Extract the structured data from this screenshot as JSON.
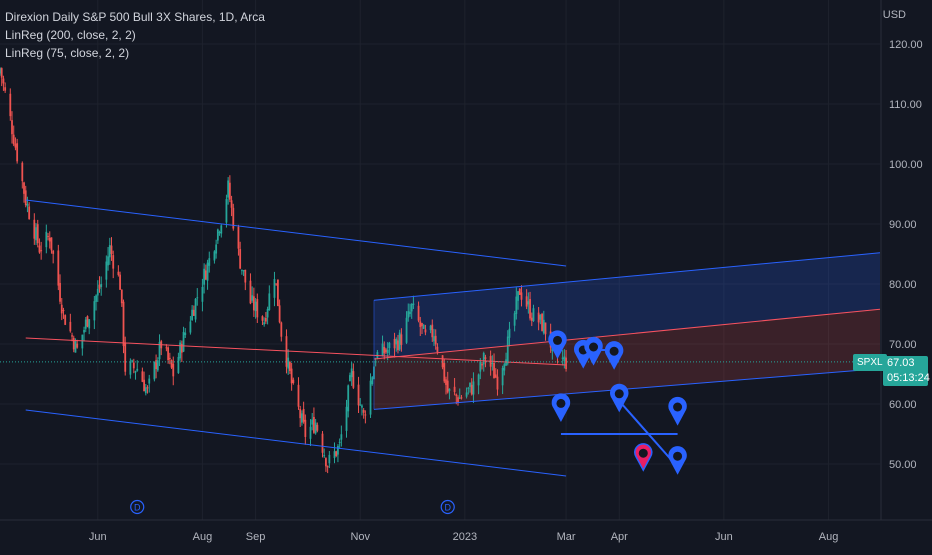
{
  "legend": {
    "title": "Direxion Daily S&P 500 Bull 3X Shares, 1D, Arca",
    "ind1": "LinReg (200, close, 2, 2)",
    "ind2": "LinReg (75, close, 2, 2)"
  },
  "currency": "USD",
  "last_price": "67.03",
  "countdown": "05:13:24",
  "ticker": "SPXL",
  "colors": {
    "background": "#131722",
    "up": "#26a69a",
    "down": "#ef5350",
    "channel_line": "#2962ff",
    "center_line": "#f7525f",
    "marker": "#2962ff",
    "marker_highlight": "#e91e63"
  },
  "dividend_icon": "D",
  "chart_data": {
    "type": "candlestick",
    "y_axis": {
      "ylim": [
        41,
        126
      ],
      "ticks": [
        50,
        60,
        70,
        80,
        90,
        100,
        110,
        120
      ],
      "tick_labels": [
        "50.00",
        "60.00",
        "70.00",
        "80.00",
        "90.00",
        "100.00",
        "110.00",
        "120.00"
      ]
    },
    "x_axis": {
      "tick_labels": [
        "Jun",
        "Aug",
        "Sep",
        "Nov",
        "2023",
        "Mar",
        "Apr",
        "Jun",
        "Aug"
      ],
      "tick_dates": [
        "2022-06-01",
        "2022-08-01",
        "2022-09-01",
        "2022-11-01",
        "2023-01-01",
        "2023-03-01",
        "2023-04-01",
        "2023-06-01",
        "2023-08-01"
      ]
    },
    "date_range": [
      "2022-04-05",
      "2023-08-31"
    ],
    "close_path": [
      [
        "2022-04-05",
        116
      ],
      [
        "2022-04-12",
        106
      ],
      [
        "2022-04-20",
        94
      ],
      [
        "2022-04-28",
        86
      ],
      [
        "2022-05-04",
        88
      ],
      [
        "2022-05-12",
        75
      ],
      [
        "2022-05-20",
        69
      ],
      [
        "2022-05-28",
        76
      ],
      [
        "2022-06-03",
        80
      ],
      [
        "2022-06-08",
        86
      ],
      [
        "2022-06-14",
        80
      ],
      [
        "2022-06-17",
        66
      ],
      [
        "2022-06-24",
        66
      ],
      [
        "2022-06-30",
        62
      ],
      [
        "2022-07-08",
        70
      ],
      [
        "2022-07-15",
        65
      ],
      [
        "2022-07-22",
        72
      ],
      [
        "2022-07-29",
        78
      ],
      [
        "2022-08-05",
        84
      ],
      [
        "2022-08-12",
        91
      ],
      [
        "2022-08-16",
        96
      ],
      [
        "2022-08-22",
        85
      ],
      [
        "2022-08-29",
        77
      ],
      [
        "2022-09-06",
        74
      ],
      [
        "2022-09-12",
        82
      ],
      [
        "2022-09-16",
        72
      ],
      [
        "2022-09-23",
        62
      ],
      [
        "2022-09-30",
        55
      ],
      [
        "2022-10-06",
        57
      ],
      [
        "2022-10-13",
        50
      ],
      [
        "2022-10-20",
        53
      ],
      [
        "2022-10-27",
        65
      ],
      [
        "2022-11-03",
        58
      ],
      [
        "2022-11-10",
        68
      ],
      [
        "2022-11-17",
        69
      ],
      [
        "2022-11-25",
        71
      ],
      [
        "2022-12-01",
        76
      ],
      [
        "2022-12-09",
        71
      ],
      [
        "2022-12-14",
        72
      ],
      [
        "2022-12-22",
        62
      ],
      [
        "2022-12-29",
        61
      ],
      [
        "2023-01-06",
        63
      ],
      [
        "2023-01-13",
        68
      ],
      [
        "2023-01-20",
        64
      ],
      [
        "2023-01-27",
        71
      ],
      [
        "2023-02-02",
        79
      ],
      [
        "2023-02-09",
        75
      ],
      [
        "2023-02-16",
        73
      ],
      [
        "2023-02-23",
        68
      ],
      [
        "2023-03-01",
        67
      ]
    ],
    "linreg_200": {
      "start": "2022-04-20",
      "end": "2023-03-01",
      "upper": [
        94,
        83
      ],
      "center": [
        71,
        66.5
      ],
      "lower": [
        59,
        48
      ]
    },
    "linreg_75": {
      "start": "2022-11-09",
      "end": "2023-08-31",
      "upper": [
        77.3,
        85.2
      ],
      "center": [
        67.5,
        75.8
      ],
      "lower": [
        59.1,
        65.9
      ]
    },
    "dividends": [
      "2022-06-24",
      "2022-12-22"
    ],
    "markers": [
      {
        "date": "2023-02-24",
        "price": 70.1
      },
      {
        "date": "2023-03-11",
        "price": 68.5
      },
      {
        "date": "2023-03-17",
        "price": 69.0
      },
      {
        "date": "2023-03-29",
        "price": 68.3
      },
      {
        "date": "2023-02-26",
        "price": 59.6
      },
      {
        "date": "2023-04-01",
        "price": 61.2
      },
      {
        "date": "2023-05-05",
        "price": 59.0
      },
      {
        "date": "2023-04-15",
        "price": 51.3,
        "highlight": true
      },
      {
        "date": "2023-05-05",
        "price": 50.8
      }
    ],
    "connectors": [
      [
        [
          "2023-03-11",
          69.0
        ],
        [
          "2023-03-29",
          69.0
        ]
      ],
      [
        [
          "2023-02-26",
          55.0
        ],
        [
          "2023-05-05",
          55.0
        ]
      ],
      [
        [
          "2023-04-01",
          60.5
        ],
        [
          "2023-05-05",
          49.5
        ]
      ]
    ]
  }
}
